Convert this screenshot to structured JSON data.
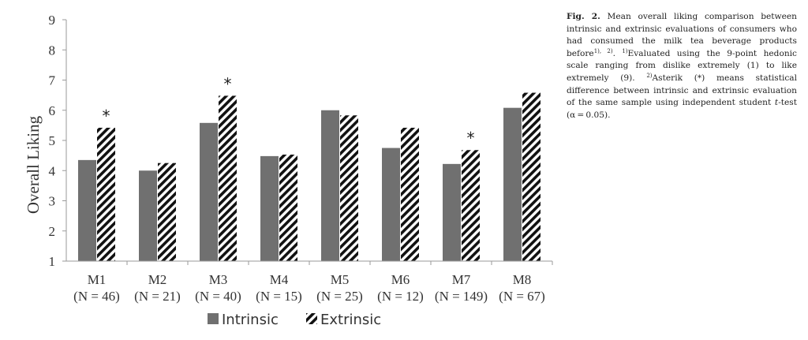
{
  "chart_data": {
    "type": "bar",
    "ylabel": "Overall Liking",
    "ylim": [
      1,
      9
    ],
    "yticks": [
      "1",
      "2",
      "3",
      "4",
      "5",
      "6",
      "7",
      "8",
      "9"
    ],
    "categories": [
      "M1",
      "M2",
      "M3",
      "M4",
      "M5",
      "M6",
      "M7",
      "M8"
    ],
    "sample_sizes": [
      "(N = 46)",
      "(N = 21)",
      "(N = 40)",
      "(N = 15)",
      "(N = 25)",
      "(N = 12)",
      "(N = 149)",
      "(N = 67)"
    ],
    "series": [
      {
        "name": "Intrinsic",
        "values": [
          4.35,
          4.0,
          5.58,
          4.48,
          6.0,
          4.75,
          4.22,
          6.08
        ],
        "color": "#707070",
        "pattern": "solid"
      },
      {
        "name": "Extrinsic",
        "values": [
          5.42,
          4.25,
          6.48,
          4.53,
          5.83,
          5.42,
          4.68,
          6.58
        ],
        "color": "#111111",
        "pattern": "diagonal-stripes"
      }
    ],
    "annotations": [
      {
        "category": "M1",
        "text": "*"
      },
      {
        "category": "M3",
        "text": "*"
      },
      {
        "category": "M7",
        "text": "*"
      }
    ],
    "legend_position": "bottom",
    "grid": false
  },
  "caption": {
    "label": "Fig. 2.",
    "text_1": " Mean overall liking comparison between intrinsic and extrinsic evaluations of consumers who had consumed the milk tea beverage pro­ducts before",
    "sup_1": "1), 2)",
    "text_2": ". ",
    "sup_2": "1)",
    "text_3": "Evaluated using the 9-point hedonic scale ranging from dislike extremely (1) to like extremely (9). ",
    "sup_3": "2)",
    "text_4": "Asterik (*) means sta­tistical difference between intrinsic and ex­trinsic evaluation of the same sample using in­dependent student ",
    "italic_t": "t",
    "text_5": "-test (α = 0.05)."
  }
}
